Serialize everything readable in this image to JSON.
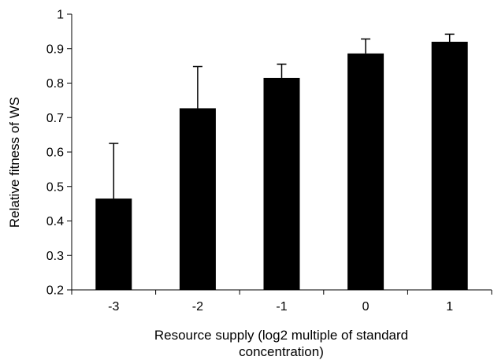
{
  "chart_data": {
    "type": "bar",
    "categories": [
      "-3",
      "-2",
      "-1",
      "0",
      "1"
    ],
    "values": [
      0.465,
      0.727,
      0.815,
      0.886,
      0.92
    ],
    "error_upper": [
      0.625,
      0.848,
      0.855,
      0.928,
      0.942
    ],
    "title": "",
    "xlabel_lines": [
      "Resource supply (log2 multiple of standard",
      "concentration)"
    ],
    "ylabel": "Relative fitness of WS",
    "ylim": [
      0.2,
      1.0
    ],
    "yticks": [
      "0.2",
      "0.3",
      "0.4",
      "0.5",
      "0.6",
      "0.7",
      "0.8",
      "0.9",
      "1"
    ],
    "grid": false,
    "legend": "none",
    "bar_color": "#000000"
  }
}
